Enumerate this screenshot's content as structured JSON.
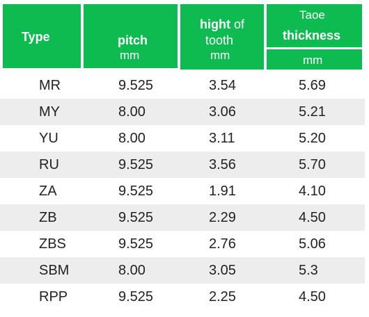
{
  "header": {
    "type": "Type",
    "pitch": "pitch",
    "pitch_unit": "mm",
    "hight_bold": "hight",
    "hight_light": " of",
    "hight_line2": "tooth",
    "hight_unit": "mm",
    "taoe_line1": "Taoe",
    "taoe_line2": "thickness",
    "taoe_unit": "mm"
  },
  "rows": [
    {
      "type": "MR",
      "pitch": "9.525",
      "hight": "3.54",
      "taoe": "5.69"
    },
    {
      "type": "MY",
      "pitch": "8.00",
      "hight": "3.06",
      "taoe": "5.21"
    },
    {
      "type": "YU",
      "pitch": "8.00",
      "hight": "3.11",
      "taoe": "5.20"
    },
    {
      "type": "RU",
      "pitch": "9.525",
      "hight": "3.56",
      "taoe": "5.70"
    },
    {
      "type": "ZA",
      "pitch": "9.525",
      "hight": "1.91",
      "taoe": "4.10"
    },
    {
      "type": "ZB",
      "pitch": "9.525",
      "hight": "2.29",
      "taoe": "4.50"
    },
    {
      "type": "ZBS",
      "pitch": "9.525",
      "hight": "2.76",
      "taoe": "5.06"
    },
    {
      "type": "SBM",
      "pitch": "8.00",
      "hight": "3.05",
      "taoe": "5.3"
    },
    {
      "type": "RPP",
      "pitch": "9.525",
      "hight": "2.25",
      "taoe": "4.50"
    }
  ],
  "colors": {
    "header_green": "#0dbb51",
    "row_shade": "#ededed"
  }
}
